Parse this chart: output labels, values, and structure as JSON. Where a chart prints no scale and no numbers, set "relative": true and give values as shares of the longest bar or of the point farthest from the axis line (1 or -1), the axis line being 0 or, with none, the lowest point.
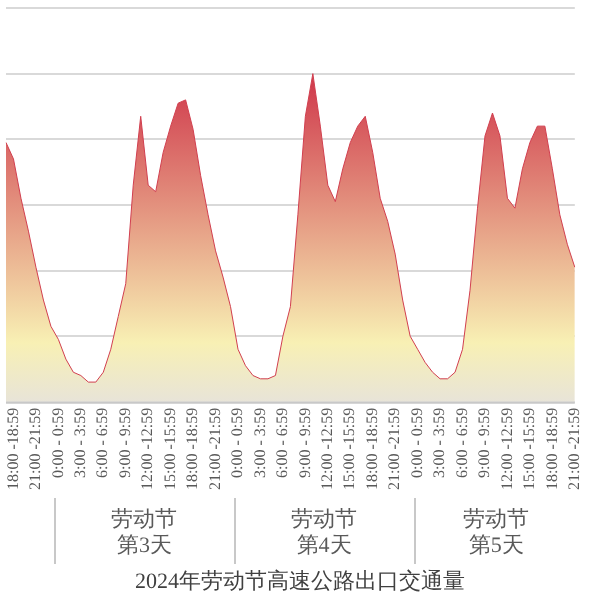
{
  "chart_data": {
    "type": "area",
    "relative": true,
    "title": "2024年劳动节高速公路出口交通量",
    "categories": [
      null,
      "18:00 -18:59",
      null,
      null,
      "21:00 -21:59",
      null,
      null,
      "0:00 - 0:59",
      null,
      null,
      "3:00 - 3:59",
      null,
      null,
      "6:00 - 6:59",
      null,
      null,
      "9:00 - 9:59",
      null,
      null,
      "12:00 -12:59",
      null,
      null,
      "15:00 -15:59",
      null,
      null,
      "18:00 -18:59",
      null,
      null,
      "21:00 -21:59",
      null,
      null,
      "0:00 - 0:59",
      null,
      null,
      "3:00 - 3:59",
      null,
      null,
      "6:00 - 6:59",
      null,
      null,
      "9:00 - 9:59",
      null,
      null,
      "12:00 -12:59",
      null,
      null,
      "15:00 -15:59",
      null,
      null,
      "18:00 -18:59",
      null,
      null,
      "21:00 -21:59",
      null,
      null,
      "0:00 - 0:59",
      null,
      null,
      "3:00 - 3:59",
      null,
      null,
      "6:00 - 6:59",
      null,
      null,
      "9:00 - 9:59",
      null,
      null,
      "12:00 -12:59",
      null,
      null,
      "15:00 -15:59",
      null,
      null,
      "18:00 -18:59",
      null,
      null,
      "21:00 -21:59"
    ],
    "series": [
      {
        "color": "#d13f4f",
        "values": [
          0.79,
          0.74,
          0.62,
          0.52,
          0.41,
          0.31,
          0.23,
          0.19,
          0.13,
          0.09,
          0.08,
          0.06,
          0.06,
          0.09,
          0.16,
          0.26,
          0.36,
          0.66,
          0.87,
          0.66,
          0.64,
          0.76,
          0.84,
          0.91,
          0.92,
          0.83,
          0.69,
          0.57,
          0.46,
          0.38,
          0.29,
          0.16,
          0.11,
          0.08,
          0.07,
          0.07,
          0.08,
          0.2,
          0.29,
          0.57,
          0.87,
          1,
          0.84,
          0.66,
          0.61,
          0.71,
          0.79,
          0.84,
          0.87,
          0.76,
          0.62,
          0.55,
          0.45,
          0.31,
          0.2,
          0.16,
          0.12,
          0.09,
          0.07,
          0.07,
          0.09,
          0.16,
          0.34,
          0.59,
          0.81,
          0.88,
          0.81,
          0.62,
          0.59,
          0.71,
          0.79,
          0.84,
          0.84,
          0.71,
          0.57,
          0.48,
          0.41
        ]
      }
    ],
    "grid": "y",
    "legend": false,
    "annotations": [
      "劳动节第3天",
      "劳动节第4天",
      "劳动节第5天"
    ]
  }
}
